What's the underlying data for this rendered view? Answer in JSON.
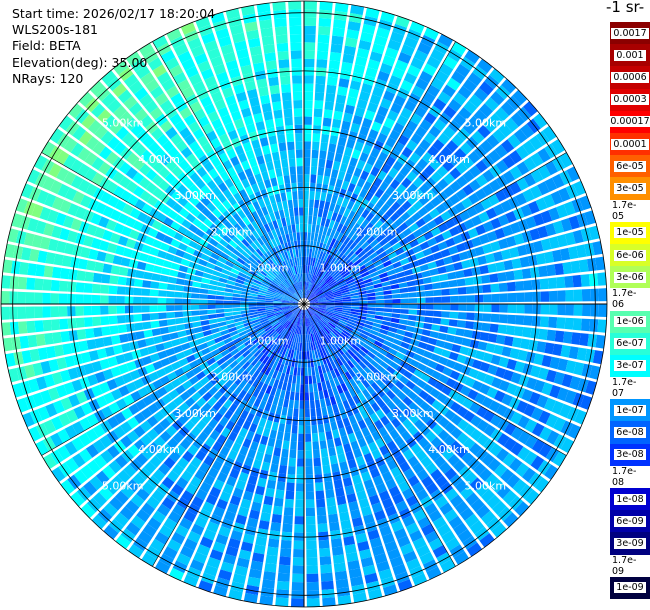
{
  "header": {
    "start_time": "Start time: 2026/02/17 18:20:04",
    "instrument": "WLS200s-181",
    "field": "Field: BETA",
    "elevation": "Elevation(deg): 35.00",
    "nrays": "NRays: 120"
  },
  "colorbar": {
    "title": "-1 sr-",
    "labels": [
      "0.0017",
      "0.001",
      "0.0006",
      "0.0003",
      "0.00017",
      "0.0001",
      "6e-05",
      "3e-05",
      "1.7e-05",
      "1e-05",
      "6e-06",
      "3e-06",
      "1.7e-06",
      "1e-06",
      "6e-07",
      "3e-07",
      "1.7e-07",
      "1e-07",
      "6e-08",
      "3e-08",
      "1.7e-08",
      "1e-08",
      "6e-09",
      "3e-09",
      "1.7e-09",
      "1e-09"
    ],
    "colors": [
      "#8b0000",
      "#a80000",
      "#c40000",
      "#e00000",
      "#ff0000",
      "#ff3000",
      "#ff6000",
      "#ff9000",
      "#ffc000",
      "#ffff00",
      "#d8ff28",
      "#b0ff58",
      "#80ff80",
      "#58ffb0",
      "#28ffd8",
      "#00ffff",
      "#00c8ff",
      "#0096ff",
      "#0064ff",
      "#0032ff",
      "#0000ff",
      "#0000d0",
      "#0000a8",
      "#000080",
      "#000060",
      "#000040"
    ]
  },
  "chart_data": {
    "type": "heatmap",
    "projection": "polar PPI",
    "title": "",
    "field": "BETA",
    "elevation_deg": 35.0,
    "nrays": 120,
    "range_rings_km": [
      1,
      2,
      3,
      4,
      5
    ],
    "range_ring_labels": [
      "1.00km",
      "2.00km",
      "3.00km",
      "4.00km",
      "5.00km"
    ],
    "max_range_km": 5.2,
    "colorscale": "jet",
    "summary": "Backscatter mostly 3e-08 to 1.7e-07 across the scan; higher values (~1e-06 to 3e-06) toward the northwest and west edges at 4-5 km range."
  }
}
